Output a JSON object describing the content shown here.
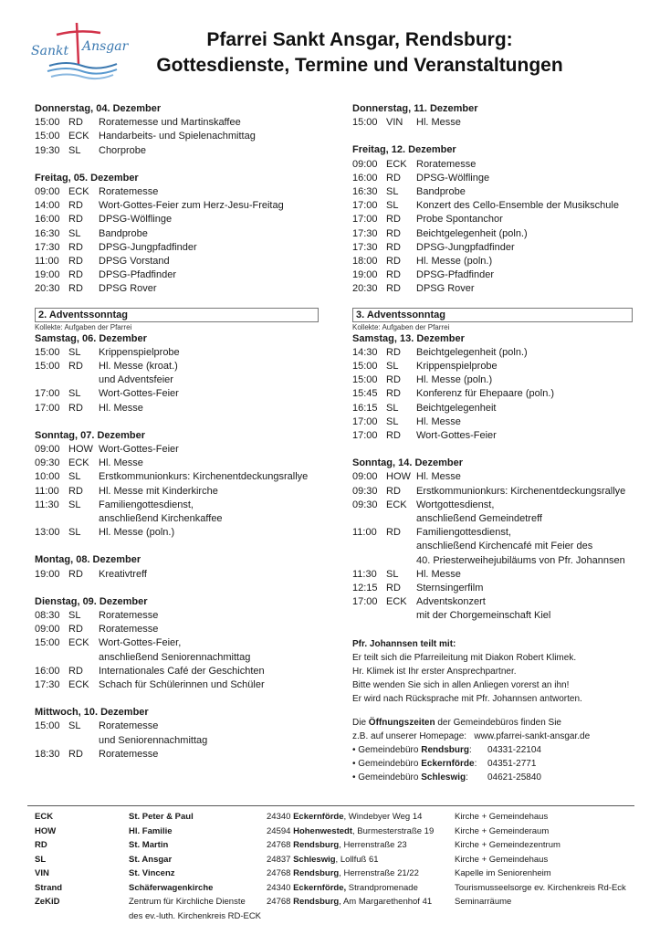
{
  "header": {
    "logo_text": [
      "Sankt",
      "Ansgar"
    ],
    "title_line1": "Pfarrei Sankt Ansgar, Rendsburg:",
    "title_line2": "Gottesdienste, Termine und Veranstaltungen"
  },
  "colors": {
    "logo_red": "#d2334a",
    "logo_blue": "#3a78b0",
    "text": "#1a1a1a"
  },
  "left": [
    {
      "day": "Donnerstag, 04. Dezember",
      "entries": [
        {
          "time": "15:00",
          "loc": "RD",
          "text": [
            "Roratemesse und Martinskaffee"
          ]
        },
        {
          "time": "15:00",
          "loc": "ECK",
          "text": [
            "Handarbeits- und Spielenachmittag"
          ]
        },
        {
          "time": "19:30",
          "loc": "SL",
          "text": [
            "Chorprobe"
          ]
        }
      ]
    },
    {
      "day": "Freitag, 05. Dezember",
      "entries": [
        {
          "time": "09:00",
          "loc": "ECK",
          "text": [
            "Roratemesse"
          ]
        },
        {
          "time": "14:00",
          "loc": "RD",
          "text": [
            "Wort-Gottes-Feier zum Herz-Jesu-Freitag"
          ]
        },
        {
          "time": "16:00",
          "loc": "RD",
          "text": [
            "DPSG-Wölflinge"
          ]
        },
        {
          "time": "16:30",
          "loc": "SL",
          "text": [
            "Bandprobe"
          ]
        },
        {
          "time": "17:30",
          "loc": "RD",
          "text": [
            "DPSG-Jungpfadfinder"
          ]
        },
        {
          "time": "11:00",
          "loc": "RD",
          "text": [
            "DPSG Vorstand"
          ]
        },
        {
          "time": "19:00",
          "loc": "RD",
          "text": [
            "DPSG-Pfadfinder"
          ]
        },
        {
          "time": "20:30",
          "loc": "RD",
          "text": [
            "DPSG Rover"
          ]
        }
      ]
    },
    {
      "advent": "2. Adventssonntag",
      "kollekte": "Kollekte: Aufgaben der Pfarrei",
      "day": "Samstag, 06. Dezember",
      "entries": [
        {
          "time": "15:00",
          "loc": "SL",
          "text": [
            "Krippenspielprobe"
          ]
        },
        {
          "time": "15:00",
          "loc": "RD",
          "text": [
            "Hl. Messe (kroat.)",
            "und Adventsfeier"
          ]
        },
        {
          "time": "17:00",
          "loc": "SL",
          "text": [
            "Wort-Gottes-Feier"
          ]
        },
        {
          "time": "17:00",
          "loc": "RD",
          "text": [
            "Hl. Messe"
          ]
        }
      ]
    },
    {
      "day": "Sonntag, 07. Dezember",
      "entries": [
        {
          "time": "09:00",
          "loc": "HOW",
          "text": [
            "Wort-Gottes-Feier"
          ]
        },
        {
          "time": "09:30",
          "loc": "ECK",
          "text": [
            "Hl. Messe"
          ]
        },
        {
          "time": "10:00",
          "loc": "SL",
          "text": [
            "Erstkommunionkurs: Kirchenentdeckungsrallye"
          ]
        },
        {
          "time": "11:00",
          "loc": "RD",
          "text": [
            "Hl. Messe mit Kinderkirche"
          ]
        },
        {
          "time": "11:30",
          "loc": "SL",
          "text": [
            "Familiengottesdienst,",
            "anschließend Kirchenkaffee"
          ]
        },
        {
          "time": "13:00",
          "loc": "SL",
          "text": [
            "Hl. Messe (poln.)"
          ]
        }
      ]
    },
    {
      "day": "Montag, 08. Dezember",
      "entries": [
        {
          "time": "19:00",
          "loc": "RD",
          "text": [
            "Kreativtreff"
          ]
        }
      ]
    },
    {
      "day": "Dienstag, 09. Dezember",
      "entries": [
        {
          "time": "08:30",
          "loc": "SL",
          "text": [
            "Roratemesse"
          ]
        },
        {
          "time": "09:00",
          "loc": "RD",
          "text": [
            "Roratemesse"
          ]
        },
        {
          "time": "15:00",
          "loc": "ECK",
          "text": [
            "Wort-Gottes-Feier,",
            "anschließend Seniorennachmittag"
          ]
        },
        {
          "time": "16:00",
          "loc": "RD",
          "text": [
            "Internationales Café der Geschichten"
          ]
        },
        {
          "time": "17:30",
          "loc": "ECK",
          "text": [
            "Schach für Schülerinnen und Schüler"
          ]
        }
      ]
    },
    {
      "day": "Mittwoch, 10. Dezember",
      "entries": [
        {
          "time": "15:00",
          "loc": "SL",
          "text": [
            "Roratemesse",
            "und Seniorennachmittag"
          ]
        },
        {
          "time": "18:30",
          "loc": "RD",
          "text": [
            "Roratemesse"
          ]
        }
      ]
    }
  ],
  "right": [
    {
      "day": "Donnerstag, 11. Dezember",
      "entries": [
        {
          "time": "15:00",
          "loc": "VIN",
          "text": [
            "Hl. Messe"
          ]
        }
      ]
    },
    {
      "day": "Freitag, 12. Dezember",
      "entries": [
        {
          "time": "09:00",
          "loc": "ECK",
          "text": [
            "Roratemesse"
          ]
        },
        {
          "time": "16:00",
          "loc": "RD",
          "text": [
            "DPSG-Wölflinge"
          ]
        },
        {
          "time": "16:30",
          "loc": "SL",
          "text": [
            "Bandprobe"
          ]
        },
        {
          "time": "17:00",
          "loc": "SL",
          "text": [
            "Konzert des Cello-Ensemble der Musikschule"
          ]
        },
        {
          "time": "17:00",
          "loc": "RD",
          "text": [
            "Probe Spontanchor"
          ]
        },
        {
          "time": "17:30",
          "loc": "RD",
          "text": [
            "Beichtgelegenheit (poln.)"
          ]
        },
        {
          "time": "17:30",
          "loc": "RD",
          "text": [
            "DPSG-Jungpfadfinder"
          ]
        },
        {
          "time": "18:00",
          "loc": "RD",
          "text": [
            "Hl. Messe (poln.)"
          ]
        },
        {
          "time": "19:00",
          "loc": "RD",
          "text": [
            "DPSG-Pfadfinder"
          ]
        },
        {
          "time": "20:30",
          "loc": "RD",
          "text": [
            "DPSG Rover"
          ]
        }
      ]
    },
    {
      "advent": "3. Adventssonntag",
      "kollekte": "Kollekte: Aufgaben der Pfarrei",
      "day": "Samstag, 13. Dezember",
      "entries": [
        {
          "time": "14:30",
          "loc": "RD",
          "text": [
            "Beichtgelegenheit (poln.)"
          ]
        },
        {
          "time": "15:00",
          "loc": "SL",
          "text": [
            "Krippenspielprobe"
          ]
        },
        {
          "time": "15:00",
          "loc": "RD",
          "text": [
            "Hl. Messe (poln.)"
          ]
        },
        {
          "time": "15:45",
          "loc": "RD",
          "text": [
            "Konferenz für Ehepaare (poln.)"
          ]
        },
        {
          "time": "16:15",
          "loc": "SL",
          "text": [
            "Beichtgelegenheit"
          ]
        },
        {
          "time": "17:00",
          "loc": "SL",
          "text": [
            "Hl. Messe"
          ]
        },
        {
          "time": "17:00",
          "loc": "RD",
          "text": [
            "Wort-Gottes-Feier"
          ]
        }
      ]
    },
    {
      "day": "Sonntag, 14. Dezember",
      "entries": [
        {
          "time": "09:00",
          "loc": "HOW",
          "text": [
            "Hl. Messe"
          ]
        },
        {
          "time": "09:30",
          "loc": "RD",
          "text": [
            "Erstkommunionkurs: Kirchenentdeckungsrallye"
          ]
        },
        {
          "time": "09:30",
          "loc": "ECK",
          "text": [
            "Wortgottesdienst,",
            "anschließend Gemeindetreff"
          ]
        },
        {
          "time": "11:00",
          "loc": "RD",
          "text": [
            "Familiengottesdienst,",
            "anschließend Kirchencafé mit Feier des",
            "40. Priesterweihejubiläums von Pfr. Johannsen"
          ]
        },
        {
          "time": "11:30",
          "loc": "SL",
          "text": [
            "Hl. Messe"
          ]
        },
        {
          "time": "12:15",
          "loc": "RD",
          "text": [
            "Sternsingerfilm"
          ]
        },
        {
          "time": "17:00",
          "loc": "ECK",
          "text": [
            "Adventskonzert",
            "mit der Chorgemeinschaft Kiel"
          ]
        }
      ]
    }
  ],
  "notice": {
    "heading": "Pfr. Johannsen teilt mit:",
    "lines": [
      "Er teilt sich die Pfarreileitung mit Diakon Robert Klimek.",
      "Hr. Klimek ist Ihr erster Ansprechpartner.",
      "Bitte wenden Sie sich in allen Anliegen vorerst an ihn!",
      "Er wird nach Rücksprache mit Pfr. Johannsen antworten."
    ]
  },
  "offices": {
    "intro_pre": "Die ",
    "intro_bold": "Öffnungszeiten",
    "intro_post": " der Gemeindebüros finden Sie",
    "homepage_label": "z.B. auf unserer Homepage:",
    "homepage": "www.pfarrei-sankt-ansgar.de",
    "items": [
      {
        "label": "Gemeindebüro ",
        "place": "Rendsburg",
        "phone": "04331-22104"
      },
      {
        "label": "Gemeindebüro ",
        "place": "Eckernförde",
        "phone": "04351-2771"
      },
      {
        "label": "Gemeindebüro ",
        "place": "Schleswig",
        "phone": "04621-25840"
      }
    ]
  },
  "locations": [
    {
      "code": "ECK",
      "name": [
        "St. Peter & Paul"
      ],
      "zip": "24340",
      "city": "Eckernförde",
      "street": ", Windebyer Weg 14",
      "facility": "Kirche + Gemeindehaus"
    },
    {
      "code": "HOW",
      "name": [
        "Hl. Familie"
      ],
      "zip": "24594",
      "city": "Hohenwestedt",
      "street": ", Burmesterstraße 19",
      "facility": "Kirche + Gemeinderaum"
    },
    {
      "code": "RD",
      "name": [
        "St. Martin"
      ],
      "zip": "24768",
      "city": "Rendsburg",
      "street": ", Herrenstraße 23",
      "facility": "Kirche + Gemeindezentrum"
    },
    {
      "code": "SL",
      "name": [
        "St. Ansgar"
      ],
      "zip": "24837",
      "city": "Schleswig",
      "street": ", Lollfuß 61",
      "facility": "Kirche + Gemeindehaus"
    },
    {
      "code": "VIN",
      "name": [
        "St. Vincenz"
      ],
      "zip": "24768",
      "city": "Rendsburg",
      "street": ", Herrenstraße 21/22",
      "facility": "Kapelle im Seniorenheim"
    },
    {
      "code": "Strand",
      "name": [
        "Schäferwagenkirche"
      ],
      "zip": "24340",
      "city": "Eckernförde,",
      "street": " Strandpromenade",
      "facility": "Tourismusseelsorge ev. Kirchenkreis Rd-Eck"
    },
    {
      "code": "ZeKiD",
      "name": [
        "Zentrum für Kirchliche Dienste",
        "des ev.-luth. Kirchenkreis RD-ECK"
      ],
      "zip": "24768",
      "city": "Rendsburg",
      "street": ", Am Margarethenhof 41",
      "facility": "Seminarräume"
    }
  ]
}
